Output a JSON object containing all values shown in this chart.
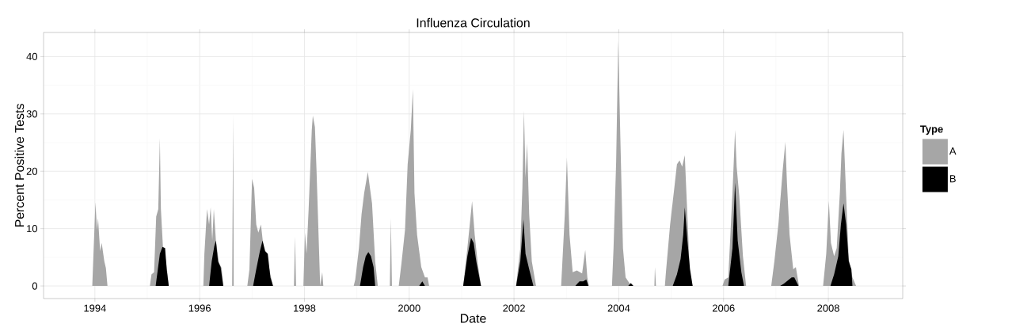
{
  "chart_data": {
    "type": "area",
    "title": "Influenza Circulation",
    "xlabel": "Date",
    "ylabel": "Percent Positive Tests",
    "legend_title": "Type",
    "xlim": [
      1993.02,
      2009.42
    ],
    "ylim": [
      -2.2,
      44.2
    ],
    "xticks": [
      1994,
      1996,
      1998,
      2000,
      2002,
      2004,
      2006,
      2008
    ],
    "yticks": [
      0,
      10,
      20,
      30,
      40
    ],
    "grid": true,
    "legend": "right",
    "series": [
      {
        "name": "A",
        "color": "#a6a6a6",
        "x": [
          1993.95,
          1994.01,
          1994.04,
          1994.06,
          1994.1,
          1994.13,
          1994.18,
          1994.21,
          1994.24,
          1995.05,
          1995.08,
          1995.13,
          1995.17,
          1995.21,
          1995.24,
          1995.26,
          1995.3,
          1995.36,
          1995.41,
          1996.07,
          1996.09,
          1996.14,
          1996.18,
          1996.21,
          1996.24,
          1996.27,
          1996.31,
          1996.37,
          1996.42,
          1996.45,
          1996.62,
          1996.64,
          1996.65,
          1996.91,
          1996.95,
          1997.0,
          1997.04,
          1997.08,
          1997.12,
          1997.17,
          1997.22,
          1997.28,
          1997.35,
          1997.4,
          1997.8,
          1997.82,
          1997.84,
          1997.98,
          1998.01,
          1998.04,
          1998.08,
          1998.14,
          1998.16,
          1998.2,
          1998.23,
          1998.26,
          1998.3,
          1998.34,
          1998.36,
          1998.94,
          1998.97,
          1999.04,
          1999.09,
          1999.14,
          1999.21,
          1999.25,
          1999.29,
          1999.35,
          1999.4,
          1999.63,
          1999.65,
          1999.67,
          1999.8,
          1999.85,
          1999.92,
          1999.97,
          2000.03,
          2000.07,
          2000.1,
          2000.15,
          2000.23,
          2000.3,
          2000.35,
          2000.38,
          2001.03,
          2001.11,
          2001.15,
          2001.2,
          2001.25,
          2001.31,
          2001.37,
          2002.04,
          2002.12,
          2002.16,
          2002.19,
          2002.22,
          2002.25,
          2002.29,
          2002.34,
          2002.42,
          2002.9,
          2002.97,
          2003.01,
          2003.06,
          2003.12,
          2003.2,
          2003.3,
          2003.36,
          2003.4,
          2003.43,
          2003.87,
          2003.9,
          2003.95,
          2003.99,
          2004.03,
          2004.08,
          2004.13,
          2004.21,
          2004.26,
          2004.68,
          2004.69,
          2004.71,
          2004.88,
          2004.9,
          2004.98,
          2005.06,
          2005.11,
          2005.16,
          2005.21,
          2005.26,
          2005.29,
          2005.36,
          2005.41,
          2005.98,
          2006.02,
          2006.09,
          2006.17,
          2006.22,
          2006.25,
          2006.3,
          2006.37,
          2006.43,
          2006.91,
          2006.97,
          2007.05,
          2007.13,
          2007.18,
          2007.21,
          2007.26,
          2007.33,
          2007.38,
          2007.44,
          2007.9,
          2007.96,
          2008.01,
          2008.05,
          2008.11,
          2008.16,
          2008.22,
          2008.25,
          2008.29,
          2008.34,
          2008.39,
          2008.46,
          2008.53
        ],
        "values": [
          0,
          14.6,
          9.8,
          11.8,
          6.1,
          7.5,
          4.3,
          3.1,
          0,
          0,
          2.0,
          2.4,
          12.1,
          13.4,
          25.8,
          13.4,
          6.6,
          4.3,
          0,
          0,
          5.6,
          13.4,
          10.7,
          13.7,
          7.9,
          13.4,
          7.9,
          4.0,
          3.1,
          0,
          0,
          30.0,
          0,
          0,
          2.9,
          18.7,
          17.1,
          10.7,
          9.3,
          10.7,
          6.6,
          5.2,
          2.0,
          0,
          0,
          8.6,
          0,
          0,
          9.3,
          5.6,
          13.4,
          27.2,
          29.7,
          27.7,
          20.3,
          11.6,
          0,
          2.4,
          0,
          0,
          1.1,
          6.6,
          12.5,
          16.2,
          19.9,
          17.1,
          14.4,
          4.3,
          0,
          0,
          11.8,
          0,
          0,
          3.8,
          9.8,
          21.2,
          27.2,
          34.3,
          16.2,
          8.9,
          3.3,
          1.5,
          1.5,
          0,
          0,
          6.6,
          10.2,
          14.8,
          8.9,
          3.8,
          0,
          0,
          6.6,
          17.1,
          30.6,
          18.9,
          24.9,
          12.5,
          4.3,
          0,
          0,
          12.5,
          22.4,
          8.9,
          2.4,
          2.7,
          2.2,
          6.3,
          1.5,
          0,
          0,
          6.6,
          21.7,
          42.8,
          25.8,
          6.6,
          1.5,
          0.4,
          0,
          0,
          3.3,
          0,
          0,
          2.4,
          10.7,
          17.1,
          21.2,
          21.9,
          20.8,
          22.8,
          null,
          1.5,
          0,
          0,
          1.1,
          1.5,
          16.2,
          27.2,
          20.8,
          15.7,
          5.2,
          0,
          0,
          4.3,
          11.1,
          20.3,
          25.1,
          18.0,
          8.9,
          2.9,
          3.3,
          0,
          0,
          5.6,
          14.8,
          7.5,
          5.2,
          6.6,
          16.2,
          23.1,
          27.2,
          15.7,
          4.7,
          1.5,
          0
        ]
      },
      {
        "name": "B",
        "color": "#000000",
        "x": [
          1995.16,
          1995.24,
          1995.29,
          1995.34,
          1995.37,
          1995.41,
          1996.18,
          1996.23,
          1996.28,
          1996.31,
          1996.35,
          1996.4,
          1996.45,
          1997.02,
          1997.08,
          1997.15,
          1997.2,
          1997.25,
          1997.3,
          1997.35,
          1997.4,
          1999.06,
          1999.12,
          1999.17,
          1999.22,
          1999.27,
          1999.32,
          1999.35,
          2000.19,
          2000.25,
          2000.3,
          2001.03,
          2001.11,
          2001.18,
          2001.23,
          2001.28,
          2001.37,
          2002.04,
          2002.12,
          2002.18,
          2002.22,
          2002.29,
          2002.37,
          2003.17,
          2003.25,
          2003.32,
          2003.38,
          2003.42,
          2004.18,
          2004.23,
          2004.28,
          2005.03,
          2005.11,
          2005.18,
          2005.23,
          2005.26,
          2005.31,
          2005.36,
          2005.41,
          2006.09,
          2006.17,
          2006.22,
          2006.27,
          2006.34,
          2006.39,
          2007.08,
          2007.15,
          2007.3,
          2007.35,
          2007.43,
          2008.04,
          2008.11,
          2008.19,
          2008.24,
          2008.29,
          2008.34,
          2008.39,
          2008.44,
          2008.46
        ],
        "values": [
          0,
          5.6,
          6.8,
          6.6,
          2.9,
          0,
          0,
          4.3,
          7.0,
          7.9,
          4.3,
          3.3,
          0,
          0,
          2.9,
          6.1,
          7.9,
          6.1,
          5.6,
          1.5,
          0,
          0,
          3.3,
          5.2,
          5.9,
          5.2,
          3.3,
          0,
          0,
          0.8,
          0,
          0,
          5.2,
          8.4,
          7.5,
          4.3,
          0,
          0,
          4.3,
          11.6,
          5.6,
          2.9,
          0,
          0,
          0.8,
          0.8,
          1.1,
          0,
          0,
          0.5,
          0,
          0,
          2.0,
          4.7,
          8.9,
          13.7,
          7.9,
          2.9,
          0,
          0,
          6.6,
          18.0,
          7.9,
          2.4,
          0,
          0,
          0.4,
          1.5,
          1.5,
          0,
          0,
          2.0,
          5.2,
          10.7,
          14.4,
          10.7,
          4.3,
          2.9,
          0
        ]
      }
    ]
  }
}
